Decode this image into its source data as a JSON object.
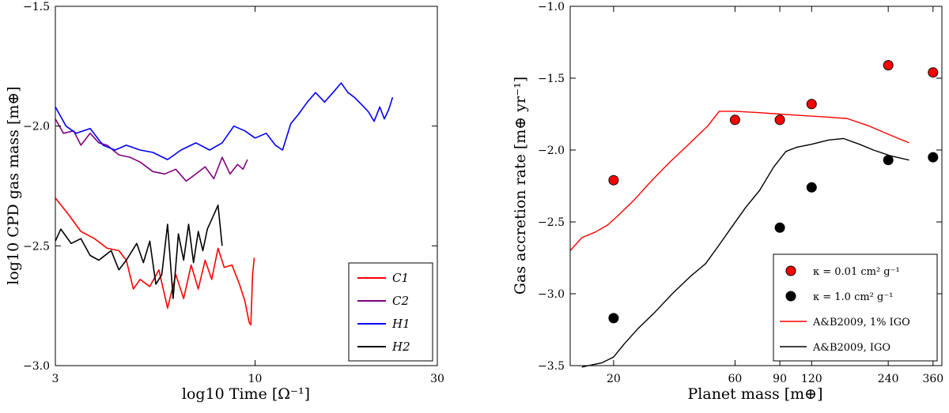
{
  "chart_data": [
    {
      "type": "line",
      "xlabel": "log10 Time [Ω⁻¹]",
      "ylabel": "log10 CPD gas mass [m⊕]",
      "xscale": "log",
      "xlim": [
        3,
        30
      ],
      "ylim": [
        -3.0,
        -1.5
      ],
      "xticks": [
        3,
        10,
        30
      ],
      "xtick_labels": [
        "3",
        "10",
        "30"
      ],
      "yticks": [
        -3.0,
        -2.5,
        -2.0,
        -1.5
      ],
      "ytick_labels": [
        "−3.0",
        "−2.5",
        "−2.0",
        "−1.5"
      ],
      "legend_position": "lower-right",
      "series": [
        {
          "name": "C1",
          "color": "#ff0000",
          "x": [
            3.0,
            3.25,
            3.5,
            3.8,
            4.1,
            4.4,
            4.6,
            4.8,
            5.0,
            5.3,
            5.6,
            5.9,
            6.2,
            6.5,
            6.8,
            7.1,
            7.4,
            7.7,
            8.0,
            8.3,
            8.7,
            9.1,
            9.4,
            9.65,
            9.75,
            9.85,
            9.95
          ],
          "y": [
            -2.3,
            -2.37,
            -2.44,
            -2.47,
            -2.51,
            -2.52,
            -2.56,
            -2.68,
            -2.64,
            -2.67,
            -2.6,
            -2.76,
            -2.62,
            -2.72,
            -2.58,
            -2.68,
            -2.56,
            -2.64,
            -2.51,
            -2.59,
            -2.58,
            -2.66,
            -2.73,
            -2.82,
            -2.83,
            -2.62,
            -2.55
          ]
        },
        {
          "name": "C2",
          "color": "#800080",
          "x": [
            3.0,
            3.15,
            3.35,
            3.5,
            3.7,
            3.9,
            4.1,
            4.4,
            4.7,
            5.0,
            5.4,
            5.8,
            6.2,
            6.6,
            7.0,
            7.4,
            7.8,
            8.2,
            8.6,
            9.0,
            9.3,
            9.55
          ],
          "y": [
            -1.97,
            -2.03,
            -2.02,
            -2.08,
            -2.03,
            -2.07,
            -2.08,
            -2.12,
            -2.13,
            -2.15,
            -2.19,
            -2.2,
            -2.18,
            -2.23,
            -2.2,
            -2.17,
            -2.22,
            -2.13,
            -2.2,
            -2.16,
            -2.18,
            -2.14
          ]
        },
        {
          "name": "H1",
          "color": "#0000ff",
          "x": [
            3.0,
            3.2,
            3.4,
            3.7,
            4.0,
            4.3,
            4.6,
            5.0,
            5.4,
            5.9,
            6.4,
            7.0,
            7.6,
            8.2,
            8.8,
            9.4,
            10.0,
            10.7,
            11.3,
            11.8,
            12.4,
            13.0,
            13.7,
            14.4,
            15.2,
            16.0,
            16.8,
            17.5,
            18.2,
            19.0,
            19.8,
            20.5,
            21.2,
            21.8,
            22.4,
            22.9
          ],
          "y": [
            -1.92,
            -2.0,
            -2.03,
            -2.01,
            -2.08,
            -2.1,
            -2.08,
            -2.1,
            -2.11,
            -2.14,
            -2.1,
            -2.07,
            -2.1,
            -2.07,
            -2.0,
            -2.02,
            -2.05,
            -2.03,
            -2.08,
            -2.1,
            -1.99,
            -1.95,
            -1.9,
            -1.86,
            -1.9,
            -1.86,
            -1.82,
            -1.86,
            -1.88,
            -1.91,
            -1.94,
            -1.98,
            -1.92,
            -1.97,
            -1.93,
            -1.88
          ]
        },
        {
          "name": "H2",
          "color": "#000000",
          "x": [
            3.0,
            3.1,
            3.3,
            3.5,
            3.7,
            3.9,
            4.2,
            4.4,
            4.6,
            4.9,
            5.1,
            5.3,
            5.5,
            5.7,
            5.9,
            6.1,
            6.3,
            6.5,
            6.7,
            6.9,
            7.1,
            7.3,
            7.5,
            7.8,
            8.0,
            8.2
          ],
          "y": [
            -2.48,
            -2.43,
            -2.49,
            -2.47,
            -2.54,
            -2.56,
            -2.52,
            -2.6,
            -2.56,
            -2.49,
            -2.57,
            -2.48,
            -2.66,
            -2.62,
            -2.41,
            -2.72,
            -2.45,
            -2.56,
            -2.41,
            -2.57,
            -2.44,
            -2.52,
            -2.43,
            -2.37,
            -2.33,
            -2.5
          ]
        }
      ]
    },
    {
      "type": "scatter",
      "xlabel": "Planet mass [m⊕]",
      "ylabel": "Gas accretion rate [m⊕ yr⁻¹]",
      "xscale": "log",
      "xlim": [
        13.5,
        390
      ],
      "ylim": [
        -3.5,
        -1.0
      ],
      "xticks": [
        20,
        60,
        90,
        120,
        240,
        360
      ],
      "xtick_labels": [
        "20",
        "60",
        "90",
        "120",
        "240",
        "360"
      ],
      "yticks": [
        -3.5,
        -3.0,
        -2.5,
        -2.0,
        -1.5,
        -1.0
      ],
      "ytick_labels": [
        "−3.5",
        "−3.0",
        "−2.5",
        "−2.0",
        "−1.5",
        "−1.0"
      ],
      "legend_position": "lower-right",
      "series": [
        {
          "name": "κ = 0.01 cm² g⁻¹",
          "kind": "scatter",
          "color": "#ff0000",
          "x": [
            20,
            60,
            90,
            120,
            240,
            360
          ],
          "y": [
            -2.21,
            -1.79,
            -1.79,
            -1.68,
            -1.41,
            -1.46
          ]
        },
        {
          "name": "κ = 1.0 cm² g⁻¹",
          "kind": "scatter",
          "color": "#000000",
          "x": [
            20,
            90,
            120,
            240,
            360
          ],
          "y": [
            -3.17,
            -2.54,
            -2.26,
            -2.07,
            -2.05
          ]
        },
        {
          "name": "A&B2009, 1% IGO",
          "kind": "line",
          "color": "#ff0000",
          "x": [
            13.5,
            15,
            17,
            19,
            21,
            24,
            28,
            33,
            40,
            47,
            52,
            60,
            75,
            90,
            110,
            135,
            165,
            200,
            240,
            290
          ],
          "y": [
            -2.7,
            -2.61,
            -2.57,
            -2.52,
            -2.45,
            -2.35,
            -2.22,
            -2.09,
            -1.95,
            -1.83,
            -1.73,
            -1.73,
            -1.74,
            -1.75,
            -1.76,
            -1.77,
            -1.78,
            -1.83,
            -1.89,
            -1.95
          ]
        },
        {
          "name": "A&B2009, IGO",
          "kind": "line",
          "color": "#000000",
          "x": [
            15,
            18,
            20,
            22,
            25,
            29,
            34,
            40,
            46,
            52,
            58,
            66,
            75,
            85,
            95,
            105,
            120,
            140,
            160,
            185,
            210,
            245,
            290
          ],
          "y": [
            -3.51,
            -3.48,
            -3.44,
            -3.35,
            -3.24,
            -3.13,
            -3.0,
            -2.88,
            -2.79,
            -2.66,
            -2.54,
            -2.4,
            -2.28,
            -2.12,
            -2.01,
            -1.98,
            -1.96,
            -1.93,
            -1.92,
            -1.96,
            -2.0,
            -2.04,
            -2.07
          ]
        }
      ]
    }
  ]
}
